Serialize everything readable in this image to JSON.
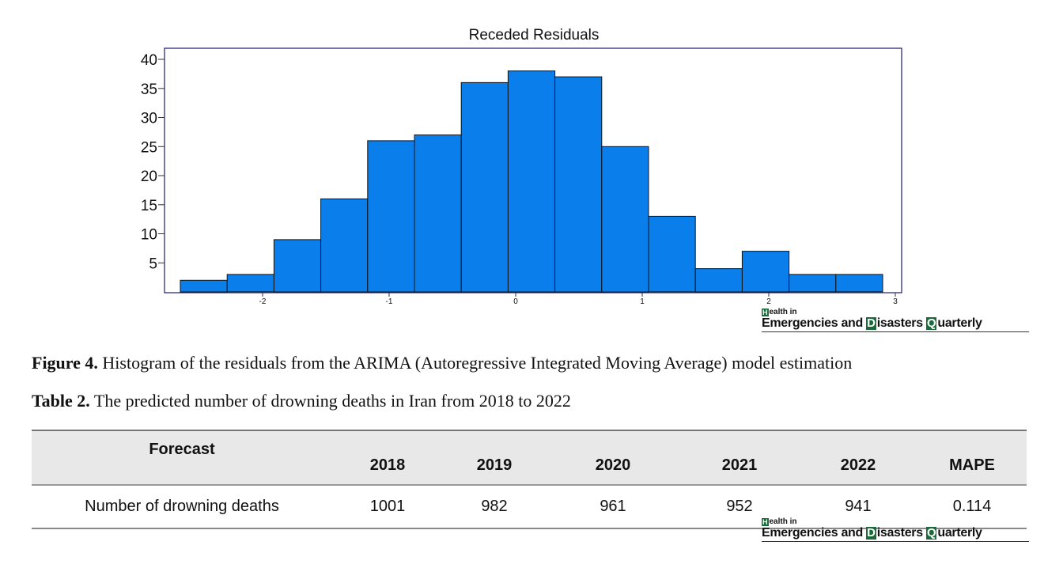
{
  "chart_data": {
    "type": "bar",
    "title": "Receded Residuals",
    "xlabel": "",
    "ylabel": "",
    "bins": [
      {
        "from": -2.65,
        "to": -2.28,
        "count": 2
      },
      {
        "from": -2.28,
        "to": -1.91,
        "count": 3
      },
      {
        "from": -1.91,
        "to": -1.54,
        "count": 9
      },
      {
        "from": -1.54,
        "to": -1.17,
        "count": 16
      },
      {
        "from": -1.17,
        "to": -0.8,
        "count": 26
      },
      {
        "from": -0.8,
        "to": -0.43,
        "count": 27
      },
      {
        "from": -0.43,
        "to": -0.06,
        "count": 36
      },
      {
        "from": -0.06,
        "to": 0.31,
        "count": 38
      },
      {
        "from": 0.31,
        "to": 0.68,
        "count": 37
      },
      {
        "from": 0.68,
        "to": 1.05,
        "count": 25
      },
      {
        "from": 1.05,
        "to": 1.42,
        "count": 13
      },
      {
        "from": 1.42,
        "to": 1.79,
        "count": 4
      },
      {
        "from": 1.79,
        "to": 2.16,
        "count": 7
      },
      {
        "from": 2.16,
        "to": 2.53,
        "count": 3
      },
      {
        "from": 2.53,
        "to": 2.9,
        "count": 3
      }
    ],
    "xlim": [
      -2.8,
      3.0
    ],
    "ylim": [
      0,
      40
    ],
    "xticks": [
      "-2",
      "-1",
      "0",
      "1",
      "2",
      "3"
    ],
    "xtick_values": [
      -2,
      -1,
      0,
      1,
      2,
      3
    ],
    "yticks": [
      "5",
      "10",
      "15",
      "20",
      "25",
      "30",
      "35",
      "40"
    ],
    "ytick_values": [
      5,
      10,
      15,
      20,
      25,
      30,
      35,
      40
    ],
    "bar_color": "#0a7fec",
    "grid": false
  },
  "logo": {
    "line1_initial": "H",
    "line1_rest": "ealth in",
    "w1": "Emergencies and",
    "w2_initial": "D",
    "w2_rest": "isasters",
    "w3_initial": "Q",
    "w3_rest": "uarterly"
  },
  "figure_caption": {
    "label": "Figure 4.",
    "text": " Histogram of the residuals from the ARIMA (Autoregressive Integrated Moving Average) model estimation"
  },
  "table_caption": {
    "label": "Table 2.",
    "text": " The predicted number of drowning deaths in Iran from 2018 to 2022"
  },
  "table": {
    "headers": [
      "Forecast",
      "2018",
      "2019",
      "2020",
      "2021",
      "2022",
      "MAPE"
    ],
    "row": [
      "Number of drowning deaths",
      "1001",
      "982",
      "961",
      "952",
      "941",
      "0.114"
    ]
  }
}
